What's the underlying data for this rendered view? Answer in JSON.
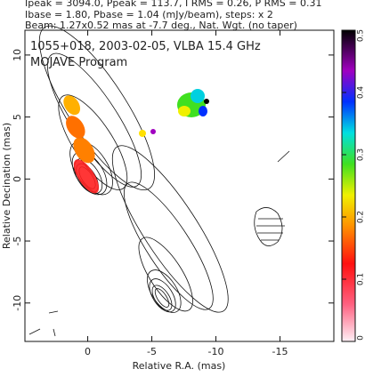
{
  "header": {
    "lines": [
      "Ipeak = 3094.0, Ppeak = 113.7, I RMS = 0.26, P RMS = 0.31",
      "Ibase = 1.80, Pbase = 1.04 (mJy/beam), steps: x 2",
      "Beam: 1.27x0.52 mas at -7.7 deg., Nat. Wgt. (no taper)"
    ]
  },
  "chart_data": {
    "type": "image",
    "title": "1055+018, 2003-02-05, VLBA 15.4 GHz",
    "subtitle": "MOJAVE Program",
    "x_label": "Relative R.A. (mas)",
    "y_label": "Relative Decination (mas)",
    "xlim": [
      4.9,
      -19.2
    ],
    "xticks": [
      0,
      -5,
      -10,
      -15
    ],
    "ylim": [
      -13.1,
      12
    ],
    "yticks": [
      -10,
      -5,
      0,
      5,
      10
    ],
    "colorbar": {
      "lim": [
        0,
        0.5
      ],
      "ticks": [
        0,
        0.1,
        0.2,
        0.3,
        0.4,
        0.5
      ]
    }
  }
}
